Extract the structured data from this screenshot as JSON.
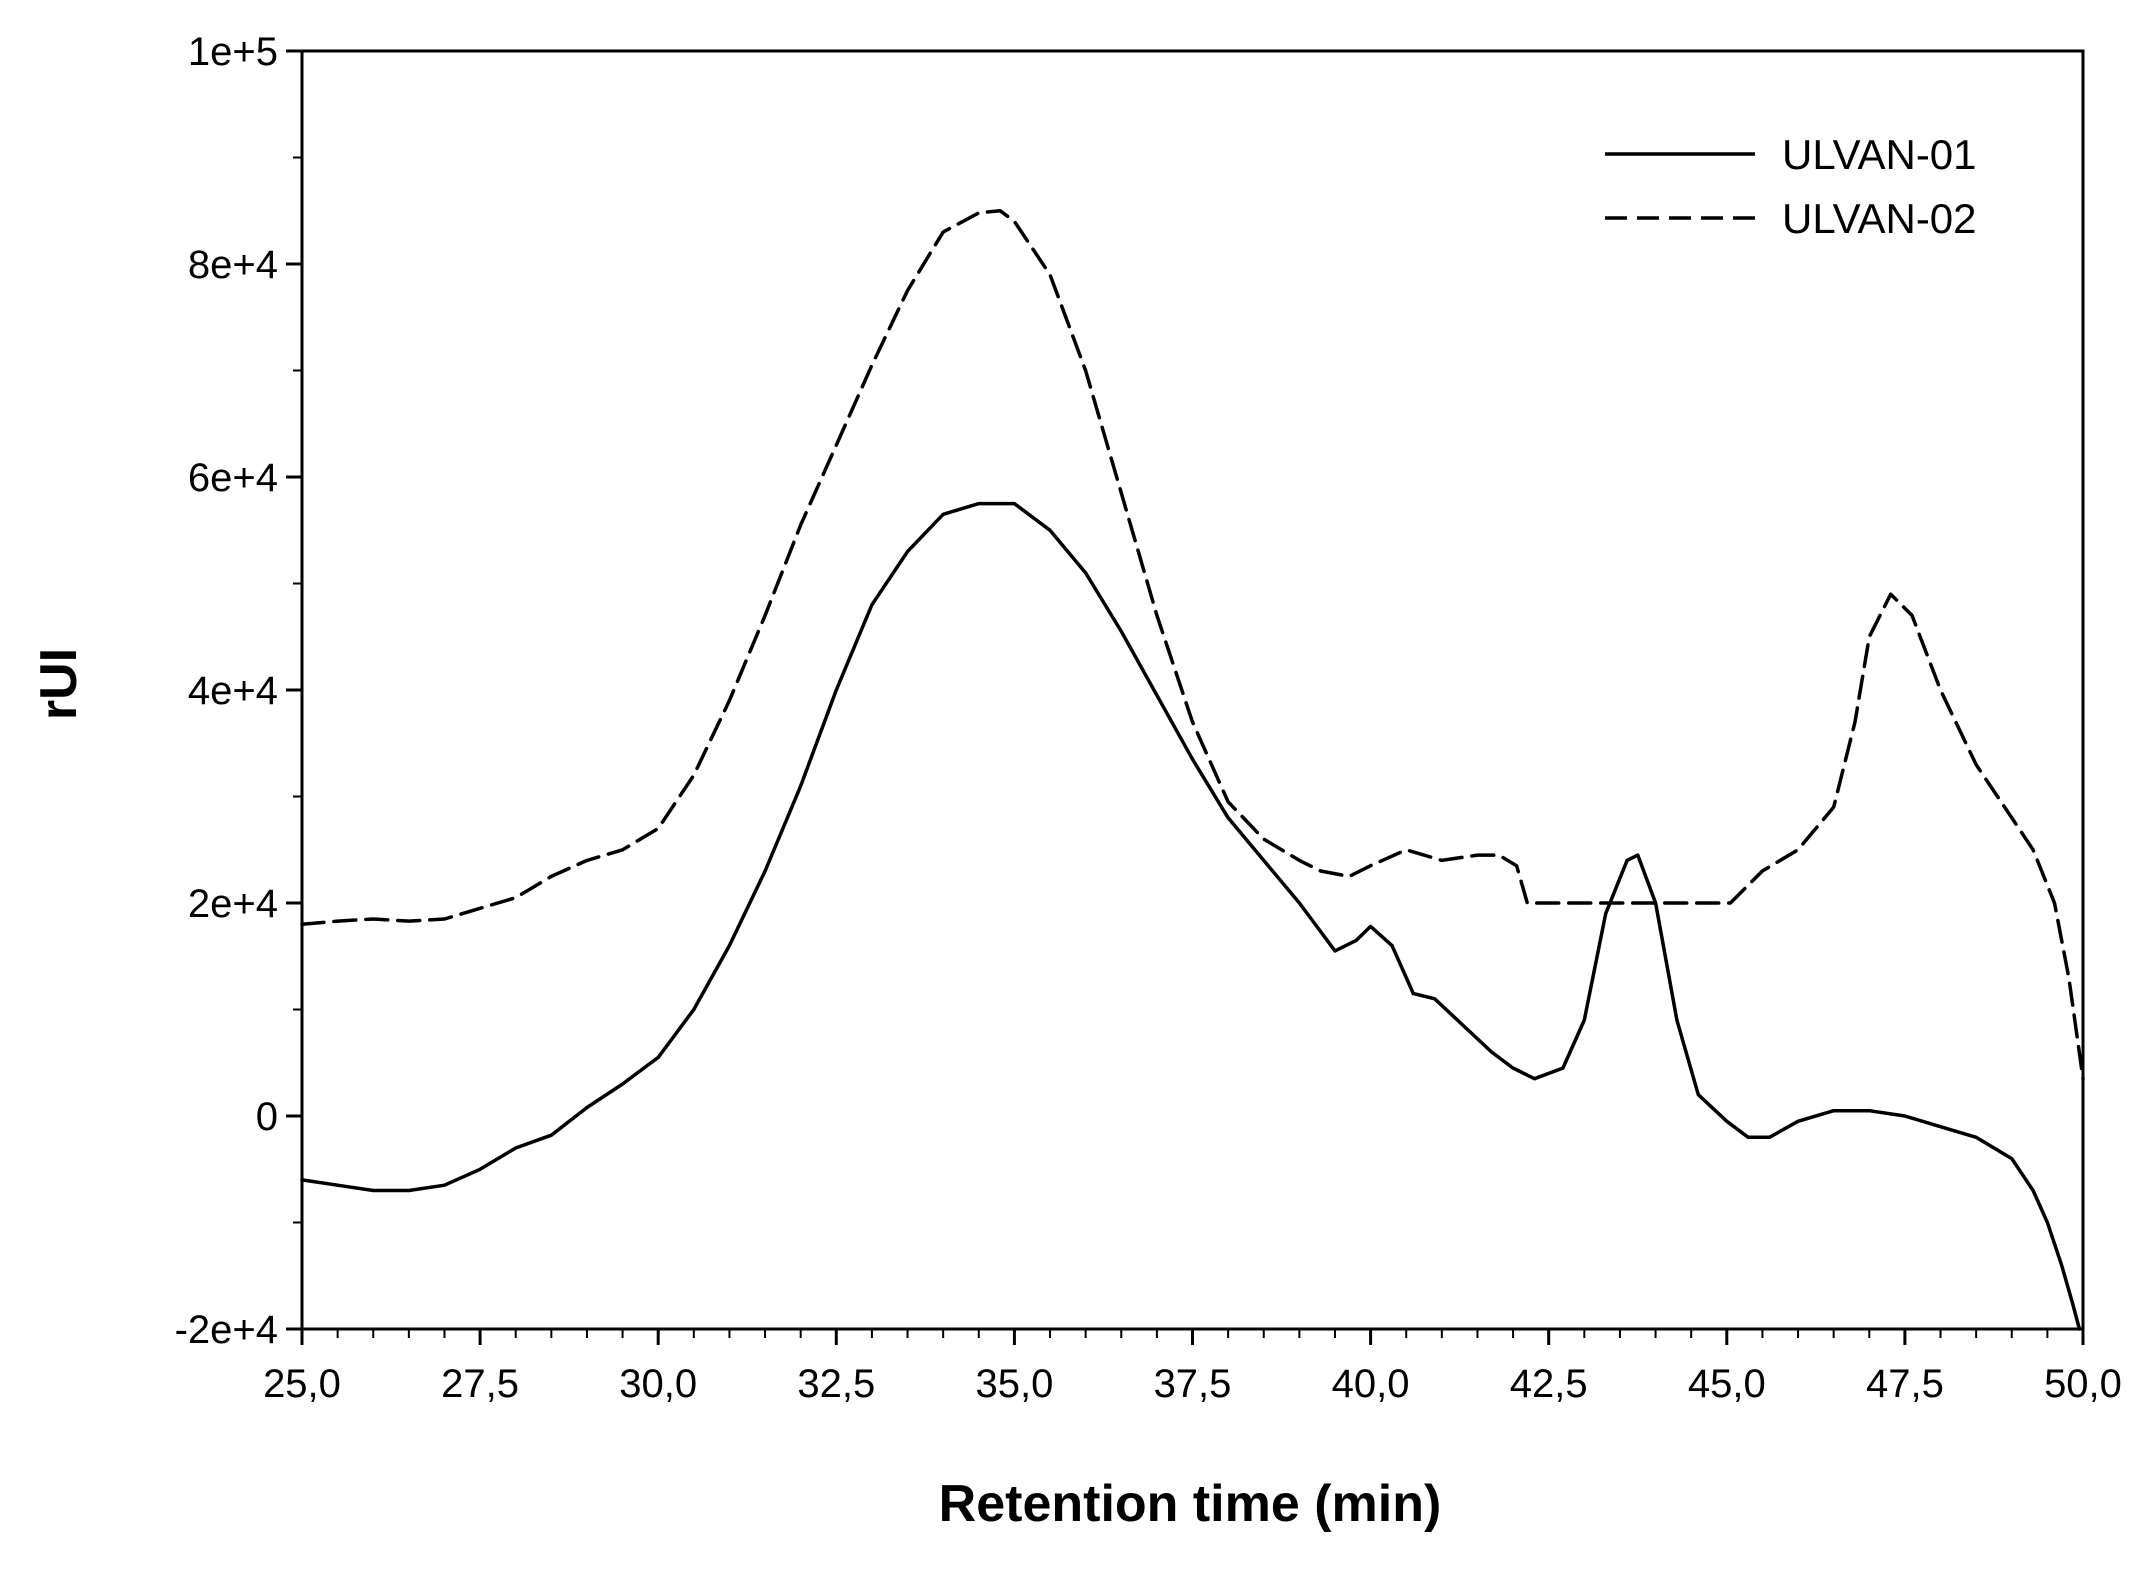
{
  "chart_data": {
    "type": "line",
    "title": "",
    "xlabel": "Retention time (min)",
    "ylabel": "rUI",
    "xlim": [
      25,
      50
    ],
    "ylim": [
      -20000,
      100000
    ],
    "xticks": [
      25,
      27.5,
      30,
      32.5,
      35,
      37.5,
      40,
      42.5,
      45,
      47.5,
      50
    ],
    "xtick_labels": [
      "25,0",
      "27,5",
      "30,0",
      "32,5",
      "35,0",
      "37,5",
      "40,0",
      "42,5",
      "45,0",
      "47,5",
      "50,0"
    ],
    "yticks": [
      -20000,
      0,
      20000,
      40000,
      60000,
      80000,
      100000
    ],
    "ytick_labels": [
      "-2e+4",
      "0",
      "2e+4",
      "4e+4",
      "6e+4",
      "8e+4",
      "1e+5"
    ],
    "grid": false,
    "legend": "top-right",
    "series": [
      {
        "name": "ULVAN-01",
        "style": "solid",
        "color": "#000000",
        "x": [
          25.0,
          25.5,
          26.0,
          26.5,
          27.0,
          27.5,
          28.0,
          28.5,
          29.0,
          29.5,
          30.0,
          30.5,
          31.0,
          31.5,
          32.0,
          32.5,
          33.0,
          33.5,
          34.0,
          34.5,
          35.0,
          35.5,
          36.0,
          36.5,
          37.0,
          37.5,
          38.0,
          38.5,
          39.0,
          39.5,
          39.8,
          40.0,
          40.3,
          40.6,
          40.9,
          41.3,
          41.7,
          42.0,
          42.3,
          42.7,
          43.0,
          43.3,
          43.6,
          43.75,
          44.0,
          44.3,
          44.6,
          45.0,
          45.3,
          45.6,
          46.0,
          46.5,
          47.0,
          47.5,
          48.0,
          48.5,
          49.0,
          49.3,
          49.5,
          49.7,
          49.85,
          49.95
        ],
        "y": [
          -6000,
          -6500,
          -7000,
          -7000,
          -6500,
          -5000,
          -3000,
          -1800,
          800,
          3000,
          5500,
          10000,
          16000,
          23000,
          31000,
          40000,
          48000,
          53000,
          56500,
          57500,
          57500,
          55000,
          51000,
          45500,
          39500,
          33500,
          28000,
          24000,
          20000,
          15500,
          16500,
          17800,
          16000,
          11500,
          11000,
          8500,
          6000,
          4500,
          3500,
          4500,
          9000,
          19000,
          24000,
          24500,
          20000,
          9000,
          2000,
          -500,
          -2000,
          -2000,
          -500,
          500,
          500,
          0,
          -1000,
          -2000,
          -4000,
          -7000,
          -10000,
          -14000,
          -17500,
          -20000
        ]
      },
      {
        "name": "ULVAN-02",
        "style": "dashed",
        "color": "#000000",
        "x": [
          25.0,
          25.5,
          26.0,
          26.5,
          27.0,
          27.5,
          28.0,
          28.5,
          29.0,
          29.5,
          30.0,
          30.5,
          31.0,
          31.5,
          32.0,
          32.5,
          33.0,
          33.5,
          34.0,
          34.5,
          34.8,
          35.0,
          35.5,
          36.0,
          36.5,
          37.0,
          37.5,
          38.0,
          38.5,
          39.0,
          39.3,
          39.7,
          40.0,
          40.5,
          41.0,
          41.5,
          41.8,
          42.05,
          42.2,
          42.5,
          43.0,
          44.0,
          45.0,
          45.05,
          45.5,
          46.0,
          46.5,
          46.8,
          47.0,
          47.3,
          47.6,
          48.0,
          48.5,
          49.0,
          49.3,
          49.6,
          49.8,
          50.0
        ],
        "y": [
          18000,
          18300,
          18500,
          18300,
          18500,
          19500,
          20500,
          22500,
          24000,
          25000,
          27000,
          32000,
          39000,
          47000,
          55500,
          63000,
          70500,
          77500,
          83000,
          84800,
          85000,
          84000,
          79000,
          70000,
          58500,
          47000,
          37000,
          29500,
          26000,
          24000,
          23000,
          22500,
          23500,
          25000,
          24000,
          24500,
          24500,
          23500,
          20000,
          20000,
          20000,
          20000,
          20000,
          20000,
          23000,
          25000,
          29000,
          37000,
          45000,
          49000,
          47000,
          40000,
          33000,
          28000,
          25000,
          20000,
          13000,
          3500
        ]
      }
    ]
  }
}
